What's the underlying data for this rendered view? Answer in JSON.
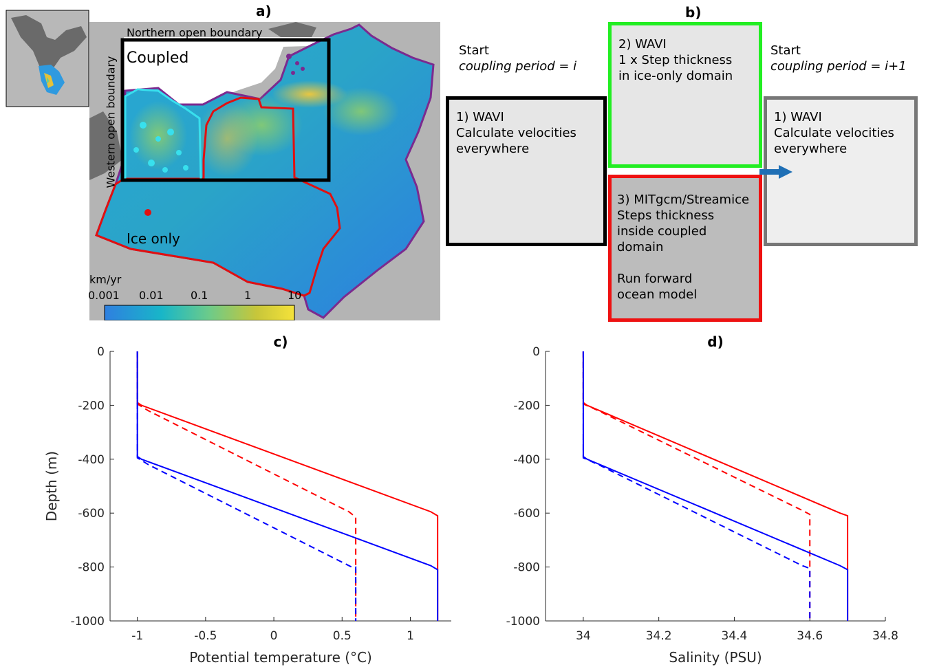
{
  "panel_a": {
    "label": "a)",
    "boundaries": {
      "north": "Northern open boundary",
      "west": "Western open boundary"
    },
    "regions": {
      "coupled": "Coupled",
      "ice_only": "Ice only"
    },
    "colorbar": {
      "unit": "km/yr",
      "ticks": [
        "0.001",
        "0.01",
        "0.1",
        "1",
        "10"
      ],
      "colors": [
        "#2f7fe0",
        "#18b6c8",
        "#6ccb8a",
        "#c7c63a",
        "#f5e23a"
      ]
    }
  },
  "panel_b": {
    "label": "b)",
    "start_left": {
      "title": "Start",
      "subtitle": "coupling period = i"
    },
    "start_right": {
      "title": "Start",
      "subtitle": "coupling period = i+1"
    },
    "box1": {
      "text": "1) WAVI\nCalculate velocities\neverywhere",
      "color": "#000000"
    },
    "box2": {
      "text": "2) WAVI\n1 x Step thickness\nin ice-only domain",
      "color": "#22ee22"
    },
    "box3": {
      "text": "3) MITgcm/Streamice\nSteps thickness\ninside coupled\ndomain\n\nRun forward\nocean model",
      "color": "#ee1111"
    },
    "box4": {
      "text": "1) WAVI\nCalculate velocities\neverywhere",
      "color": "#777777"
    },
    "arrow_color": "#1f6fb5"
  },
  "chart_data": [
    {
      "type": "line",
      "panel": "c)",
      "xlabel": "Potential temperature (°C)",
      "ylabel": "Depth (m)",
      "xlim": [
        -1.2,
        1.3
      ],
      "ylim": [
        -1000,
        0
      ],
      "xticks": [
        "-1",
        "-0.5",
        "0",
        "0.5",
        "1"
      ],
      "yticks": [
        "0",
        "-200",
        "-400",
        "-600",
        "-800",
        "-1000"
      ],
      "series": [
        {
          "color": "#ff0000",
          "dash": false,
          "points": [
            [
              -1,
              0
            ],
            [
              -1,
              -190
            ],
            [
              -0.97,
              -200
            ],
            [
              1.15,
              -595
            ],
            [
              1.2,
              -610
            ],
            [
              1.2,
              -1000
            ]
          ]
        },
        {
          "color": "#ff0000",
          "dash": true,
          "points": [
            [
              -1,
              0
            ],
            [
              -1,
              -195
            ],
            [
              -0.92,
              -220
            ],
            [
              0.55,
              -595
            ],
            [
              0.6,
              -615
            ],
            [
              0.6,
              -1000
            ]
          ]
        },
        {
          "color": "#0000ff",
          "dash": false,
          "points": [
            [
              -1,
              0
            ],
            [
              -1,
              -390
            ],
            [
              -0.97,
              -400
            ],
            [
              1.15,
              -795
            ],
            [
              1.2,
              -810
            ],
            [
              1.2,
              -1000
            ]
          ]
        },
        {
          "color": "#0000ff",
          "dash": true,
          "points": [
            [
              -1,
              0
            ],
            [
              -1,
              -395
            ],
            [
              -0.92,
              -420
            ],
            [
              0.57,
              -800
            ],
            [
              0.6,
              -800
            ],
            [
              0.6,
              -1000
            ]
          ]
        }
      ]
    },
    {
      "type": "line",
      "panel": "d)",
      "xlabel": "Salinity (PSU)",
      "ylabel": "",
      "xlim": [
        33.9,
        34.8
      ],
      "ylim": [
        -1000,
        0
      ],
      "xticks": [
        "34",
        "34.2",
        "34.4",
        "34.6",
        "34.8"
      ],
      "yticks": [
        "0",
        "-200",
        "-400",
        "-600",
        "-800",
        "-1000"
      ],
      "series": [
        {
          "color": "#ff0000",
          "dash": false,
          "points": [
            [
              34,
              0
            ],
            [
              34,
              -190
            ],
            [
              34.01,
              -200
            ],
            [
              34.68,
              -600
            ],
            [
              34.7,
              -610
            ],
            [
              34.7,
              -1000
            ]
          ]
        },
        {
          "color": "#ff0000",
          "dash": true,
          "points": [
            [
              34,
              0
            ],
            [
              34,
              -195
            ],
            [
              34.04,
              -220
            ],
            [
              34.58,
              -590
            ],
            [
              34.6,
              -605
            ],
            [
              34.6,
              -1000
            ]
          ]
        },
        {
          "color": "#0000ff",
          "dash": false,
          "points": [
            [
              34,
              0
            ],
            [
              34,
              -390
            ],
            [
              34.01,
              -400
            ],
            [
              34.68,
              -795
            ],
            [
              34.7,
              -810
            ],
            [
              34.7,
              -1000
            ]
          ]
        },
        {
          "color": "#0000ff",
          "dash": true,
          "points": [
            [
              34,
              0
            ],
            [
              34,
              -395
            ],
            [
              34.04,
              -420
            ],
            [
              34.58,
              -795
            ],
            [
              34.6,
              -805
            ],
            [
              34.6,
              -1000
            ]
          ]
        }
      ]
    }
  ]
}
